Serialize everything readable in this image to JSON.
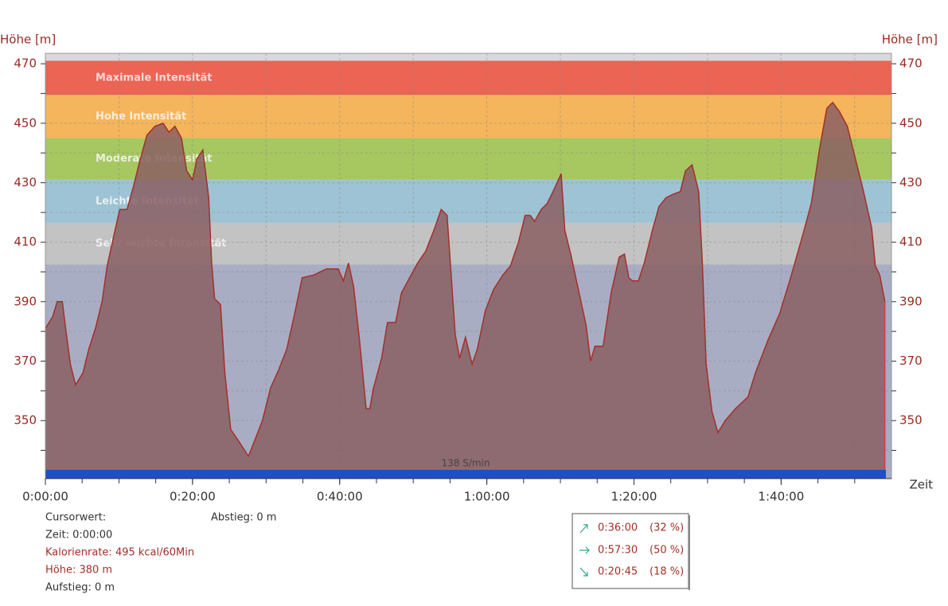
{
  "chart_data": {
    "type": "area",
    "y_label": "Höhe [m]",
    "y2_label": "Höhe [m]",
    "x_label": "Zeit",
    "ylim": [
      330.5,
      473.5
    ],
    "yticks": [
      350,
      370,
      390,
      410,
      430,
      450,
      470
    ],
    "ygrid": [
      340,
      350,
      360,
      370,
      380,
      390,
      400,
      410,
      420,
      430,
      440,
      450,
      460,
      470
    ],
    "xlim": [
      0,
      115
    ],
    "xticks": [
      {
        "value": 0,
        "label": "0:00:00"
      },
      {
        "value": 20,
        "label": "0:20:00"
      },
      {
        "value": 40,
        "label": "0:40:00"
      },
      {
        "value": 60,
        "label": "1:00:00"
      },
      {
        "value": 80,
        "label": "1:20:00"
      },
      {
        "value": 100,
        "label": "1:40:00"
      }
    ],
    "xgrid": [
      10,
      20,
      30,
      40,
      50,
      60,
      70,
      80,
      90,
      100,
      110
    ],
    "x_minor_ticks": [
      5,
      10,
      15,
      20,
      25,
      30,
      35,
      40,
      45,
      50,
      55,
      60,
      65,
      70,
      75,
      80,
      85,
      90,
      95,
      100,
      105,
      110
    ],
    "grid": true,
    "color": "#a3302a",
    "fill": "#8a5f63",
    "zones": [
      {
        "name": "Maximale Intensität",
        "from": 459.5,
        "to": 471,
        "color": "#eb6454"
      },
      {
        "name": "Hohe Intensität",
        "from": 445,
        "to": 459.5,
        "color": "#f4b55c"
      },
      {
        "name": "Moderate Intensität",
        "from": 431,
        "to": 445,
        "color": "#a7c761"
      },
      {
        "name": "Leichte Intensität",
        "from": 416.5,
        "to": 431,
        "color": "#9ec3d5"
      },
      {
        "name": "Sehr leichte Intensität",
        "from": 402.5,
        "to": 416.5,
        "color": "#c3c3c3"
      }
    ],
    "bar_label": "138 S/min",
    "x": [
      0,
      1,
      1.6,
      2.3,
      2.7,
      3.4,
      4.1,
      5.1,
      5.9,
      6.8,
      7.7,
      8.4,
      9.2,
      10.1,
      11.1,
      12,
      12.8,
      13.8,
      14.9,
      16,
      16.8,
      17.6,
      18.5,
      19.2,
      20,
      20.6,
      21.4,
      22.2,
      22.6,
      23,
      23.8,
      24.4,
      25.2,
      26.3,
      27.6,
      28.4,
      29.5,
      30.6,
      31.7,
      32.8,
      33.8,
      34.9,
      36.5,
      38.2,
      39.8,
      40.5,
      41.2,
      41.9,
      42.7,
      43.6,
      44.1,
      44.6,
      45.7,
      46.5,
      47.6,
      48.4,
      49.5,
      50.6,
      51.7,
      52.8,
      53.8,
      54.6,
      55.1,
      55.7,
      56.3,
      57.1,
      58,
      58.7,
      59.8,
      60.9,
      62.2,
      63.2,
      64.3,
      65.2,
      65.9,
      66.5,
      67.4,
      68.2,
      69,
      70.1,
      70.6,
      71.4,
      72.8,
      73.5,
      74.1,
      74.7,
      75.8,
      76.9,
      78,
      78.7,
      79.3,
      79.8,
      80.6,
      81.4,
      82.5,
      83.4,
      84.4,
      85.2,
      86.3,
      87,
      87.9,
      88.8,
      89.3,
      89.8,
      90.6,
      91.4,
      92.4,
      93.8,
      95.5,
      96.5,
      98.2,
      99.8,
      101.4,
      103,
      104.1,
      105.2,
      106.2,
      107,
      107.9,
      109,
      110,
      111.2,
      112.3,
      112.8,
      113.4,
      114.1
    ],
    "values": [
      381,
      385,
      390,
      390,
      382,
      369,
      362,
      366,
      374,
      381,
      390,
      402,
      411,
      421,
      421,
      429,
      437,
      446,
      449,
      450,
      447,
      449,
      445,
      434,
      431,
      438,
      441,
      425,
      403,
      391,
      389,
      366,
      347,
      343,
      338,
      343,
      350,
      361,
      367,
      374,
      385,
      398,
      399,
      401,
      401,
      397,
      403,
      395,
      377,
      354,
      354,
      361,
      371,
      383,
      383,
      393,
      398,
      403,
      407,
      414,
      421,
      419,
      401,
      379,
      371,
      378,
      369,
      374,
      387,
      394,
      399,
      402,
      410,
      419,
      419,
      417,
      421,
      423,
      427,
      433,
      414,
      406,
      390,
      382,
      370,
      375,
      375,
      393,
      405,
      406,
      398,
      397,
      397,
      403,
      414,
      422,
      425,
      426,
      427,
      434,
      436,
      427,
      403,
      369,
      353,
      346,
      350,
      354,
      358,
      366,
      377,
      386,
      399,
      413,
      423,
      441,
      455,
      457,
      454,
      449,
      439,
      427,
      415,
      402,
      399,
      390
    ]
  },
  "cursor": {
    "title": "Cursorwert:",
    "time": "Zeit: 0:00:00",
    "calories": "Kalorienrate: 495 kcal/60Min",
    "height": "Höhe:  380 m",
    "ascent": "Aufstieg: 0 m",
    "descent": "Abstieg: 0 m"
  },
  "summary": [
    {
      "time": "0:36:00",
      "share": "(32 %)"
    },
    {
      "time": "0:57:30",
      "share": "(50 %)"
    },
    {
      "time": "0:20:45",
      "share": "(18 %)"
    }
  ]
}
